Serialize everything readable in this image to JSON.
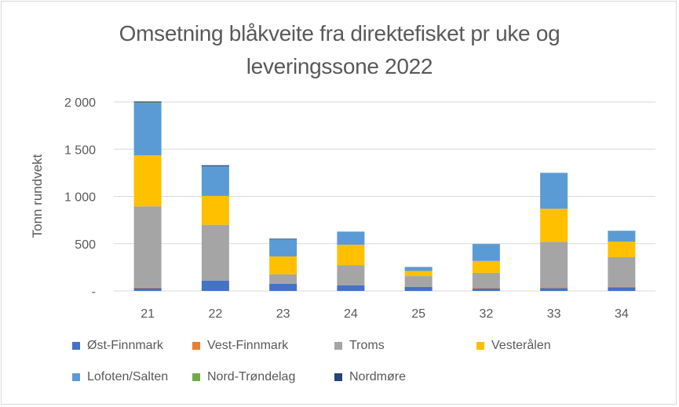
{
  "chart_data": {
    "type": "bar",
    "stacked": true,
    "title": "Omsetning blåkveite fra direktefisket pr uke og leveringssone 2022",
    "title_lines": [
      "Omsetning blåkveite fra direktefisket pr uke og",
      "leveringssone 2022"
    ],
    "xlabel": "",
    "ylabel": "Tonn rundvekt",
    "ylim": [
      0,
      2000
    ],
    "yticks": [
      0,
      500,
      1000,
      1500,
      2000
    ],
    "ytick_labels": [
      "-",
      "500",
      "1 000",
      "1 500",
      "2 000"
    ],
    "grid": true,
    "legend_position": "bottom",
    "categories": [
      "21",
      "22",
      "23",
      "24",
      "25",
      "32",
      "33",
      "34"
    ],
    "series": [
      {
        "name": "Øst-Finnmark",
        "color": "#4472c4",
        "values": [
          30,
          110,
          75,
          58,
          42,
          30,
          30,
          40
        ]
      },
      {
        "name": "Vest-Finnmark",
        "color": "#ed7d31",
        "values": [
          5,
          0,
          0,
          0,
          0,
          2,
          10,
          2
        ]
      },
      {
        "name": "Troms",
        "color": "#a5a5a5",
        "values": [
          860,
          590,
          100,
          215,
          115,
          160,
          480,
          315
        ]
      },
      {
        "name": "Vesterålen",
        "color": "#ffc000",
        "values": [
          540,
          305,
          190,
          215,
          55,
          125,
          350,
          165
        ]
      },
      {
        "name": "Lofoten/Salten",
        "color": "#5b9bd5",
        "values": [
          555,
          315,
          180,
          140,
          42,
          180,
          380,
          115
        ]
      },
      {
        "name": "Nord-Trøndelag",
        "color": "#70ad47",
        "values": [
          5,
          0,
          0,
          0,
          0,
          0,
          0,
          0
        ]
      },
      {
        "name": "Nordmøre",
        "color": "#264478",
        "values": [
          10,
          10,
          8,
          0,
          0,
          0,
          0,
          0
        ]
      }
    ]
  }
}
